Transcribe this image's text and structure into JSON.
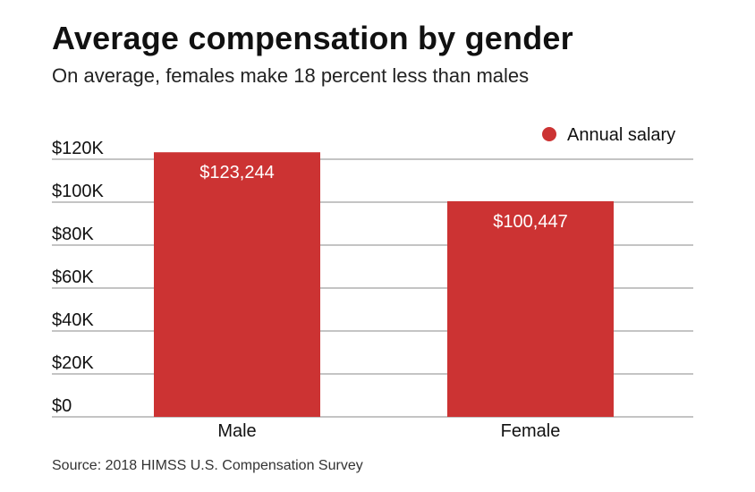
{
  "header": {
    "title": "Average compensation by gender",
    "subtitle": "On average, females make 18 percent less than males"
  },
  "footer": {
    "source": "Source: 2018 HIMSS U.S. Compensation Survey"
  },
  "colors": {
    "bar": "#cc3333",
    "grid": "#888888",
    "text": "#111111"
  },
  "chart_data": {
    "type": "bar",
    "title": "Average compensation by gender",
    "subtitle": "On average, females make 18 percent less than males",
    "categories": [
      "Male",
      "Female"
    ],
    "series": [
      {
        "name": "Annual salary",
        "values": [
          123244,
          100447
        ],
        "data_labels": [
          "$123,244",
          "$100,447"
        ]
      }
    ],
    "ylim": [
      0,
      120000
    ],
    "yticks": [
      0,
      20000,
      40000,
      60000,
      80000,
      100000,
      120000
    ],
    "ytick_labels": [
      "$0",
      "$20K",
      "$40K",
      "$60K",
      "$80K",
      "$100K",
      "$120K"
    ],
    "xlabel": "",
    "ylabel": "",
    "grid": true,
    "legend": "top-right"
  }
}
